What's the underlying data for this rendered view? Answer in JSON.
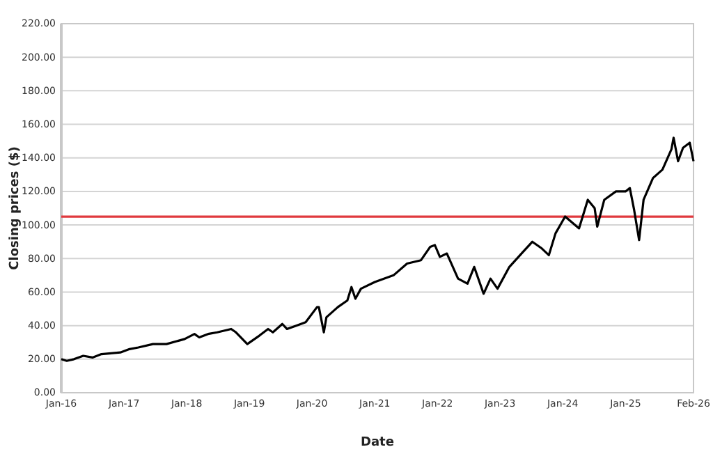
{
  "chart_data": {
    "type": "line",
    "xlabel": "Date",
    "ylabel": "Closing prices ($)",
    "x": [
      "2016-01-01",
      "2016-02-02",
      "2016-03-15",
      "2016-05-08",
      "2016-07-01",
      "2016-08-22",
      "2016-12-10",
      "2017-02-02",
      "2017-03-25",
      "2017-06-18",
      "2017-09-05",
      "2017-12-20",
      "2018-02-15",
      "2018-03-15",
      "2018-05-05",
      "2018-06-28",
      "2018-09-17",
      "2018-10-15",
      "2018-12-20",
      "2019-02-28",
      "2019-04-20",
      "2019-05-18",
      "2019-07-12",
      "2019-08-08",
      "2019-10-01",
      "2019-11-25",
      "2020-01-30",
      "2020-02-10",
      "2020-03-10",
      "2020-03-25",
      "2020-05-30",
      "2020-07-25",
      "2020-08-18",
      "2020-09-10",
      "2020-10-12",
      "2021-01-01",
      "2021-04-20",
      "2021-07-08",
      "2021-09-27",
      "2021-11-20",
      "2021-12-17",
      "2022-01-15",
      "2022-02-25",
      "2022-05-01",
      "2022-06-25",
      "2022-08-03",
      "2022-09-27",
      "2022-11-06",
      "2022-12-17",
      "2023-02-24",
      "2023-05-15",
      "2023-07-08",
      "2023-09-01",
      "2023-10-12",
      "2023-11-20",
      "2024-01-15",
      "2024-04-05",
      "2024-05-26",
      "2024-07-05",
      "2024-07-20",
      "2024-08-30",
      "2024-11-06",
      "2025-01-01",
      "2025-01-26",
      "2025-02-20",
      "2025-03-21",
      "2025-04-16",
      "2025-06-10",
      "2025-08-04",
      "2025-09-25",
      "2025-10-08",
      "2025-11-03",
      "2025-12-02",
      "2026-01-10",
      "2026-02-01"
    ],
    "series": [
      {
        "color": "#000000",
        "values": [
          20,
          19,
          20,
          22,
          21,
          23,
          24,
          26,
          27,
          29,
          29,
          32,
          35,
          33,
          35,
          36,
          38,
          36,
          29,
          34,
          38,
          36,
          41,
          38,
          40,
          42,
          51,
          51,
          36,
          45,
          51,
          55,
          63,
          56,
          62,
          66,
          70,
          77,
          79,
          87,
          88,
          81,
          83,
          68,
          65,
          75,
          59,
          68,
          62,
          75,
          84,
          90,
          86,
          82,
          95,
          105,
          98,
          115,
          110,
          99,
          115,
          120,
          120,
          122,
          109,
          91,
          115,
          128,
          133,
          145,
          152,
          138,
          146,
          149,
          138
        ]
      }
    ],
    "xlim": [
      "2016-01-01",
      "2026-02-01"
    ],
    "xticks": [
      {
        "value": "2016-01-01",
        "label": "Jan-16"
      },
      {
        "value": "2017-01-01",
        "label": "Jan-17"
      },
      {
        "value": "2018-01-01",
        "label": "Jan-18"
      },
      {
        "value": "2019-01-01",
        "label": "Jan-19"
      },
      {
        "value": "2020-01-01",
        "label": "Jan-20"
      },
      {
        "value": "2021-01-01",
        "label": "Jan-21"
      },
      {
        "value": "2022-01-01",
        "label": "Jan-22"
      },
      {
        "value": "2023-01-01",
        "label": "Jan-23"
      },
      {
        "value": "2024-01-01",
        "label": "Jan-24"
      },
      {
        "value": "2025-01-01",
        "label": "Jan-25"
      },
      {
        "value": "2026-02-01",
        "label": "Feb-26"
      }
    ],
    "ylim": [
      0,
      220
    ],
    "yticks": [
      {
        "value": 0,
        "label": "0.00"
      },
      {
        "value": 20,
        "label": "20.00"
      },
      {
        "value": 40,
        "label": "40.00"
      },
      {
        "value": 60,
        "label": "60.00"
      },
      {
        "value": 80,
        "label": "80.00"
      },
      {
        "value": 100,
        "label": "100.00"
      },
      {
        "value": 120,
        "label": "120.00"
      },
      {
        "value": 140,
        "label": "140.00"
      },
      {
        "value": 160,
        "label": "160.00"
      },
      {
        "value": 180,
        "label": "180.00"
      },
      {
        "value": 200,
        "label": "200.00"
      },
      {
        "value": 220,
        "label": "220.00"
      }
    ],
    "ref_lines": [
      {
        "axis": "y",
        "value": 105,
        "color": "#e0393e"
      }
    ],
    "grid": "y",
    "marker": "none",
    "line_style": "solid"
  }
}
